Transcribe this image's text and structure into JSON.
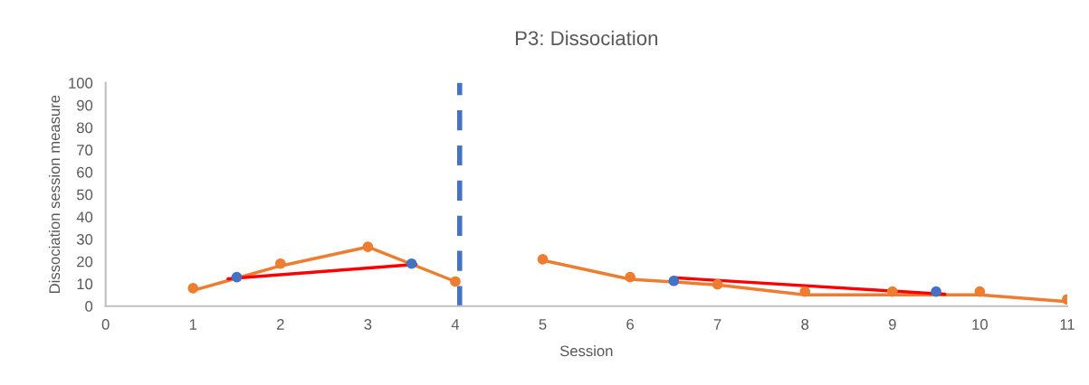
{
  "chart_data": {
    "type": "line",
    "title": "P3: Dissociation",
    "xlabel": "Session",
    "ylabel": "Dissociation session measure",
    "xlim": [
      0,
      11
    ],
    "xticks": [
      0,
      1,
      2,
      3,
      4,
      5,
      6,
      7,
      8,
      9,
      10,
      11
    ],
    "ylim": [
      0,
      100
    ],
    "yticks": [
      0,
      10,
      20,
      30,
      40,
      50,
      60,
      70,
      80,
      90,
      100
    ],
    "grid": false,
    "legend": false,
    "series": [
      {
        "color": "#ed7d31",
        "marker": "none",
        "x": [
          1,
          2,
          3,
          4,
          5,
          6,
          7,
          8,
          9,
          10,
          11
        ],
        "values": [
          7,
          18,
          26.5,
          11,
          null,
          12,
          9.5,
          5,
          5,
          5,
          2
        ]
      },
      {
        "color": "#ed7d31",
        "marker": "none",
        "x": [
          5,
          6
        ],
        "values": [
          20.5,
          12
        ]
      },
      {
        "type": "scatter",
        "color": "#ed7d31",
        "marker": "circle",
        "x": [
          1,
          2,
          3,
          4,
          5,
          6,
          7,
          8,
          9,
          10,
          11
        ],
        "values": [
          8,
          19,
          26.5,
          11,
          21,
          13,
          9.7,
          6.5,
          6.5,
          6.5,
          3
        ]
      },
      {
        "type": "scatter",
        "color": "#4472c4",
        "marker": "circle",
        "x": [
          1.5,
          3.5,
          6.5,
          9.5
        ],
        "values": [
          13,
          19,
          11.3,
          6.5
        ]
      },
      {
        "color": "#ff0000",
        "marker": "none",
        "x": [
          1.4,
          3.55
        ],
        "values": [
          12.2,
          18.7
        ]
      },
      {
        "color": "#ff0000",
        "marker": "none",
        "x": [
          6.5,
          9.6
        ],
        "values": [
          12.7,
          5.3
        ]
      }
    ],
    "ref_lines": [
      {
        "axis": "x",
        "value": 4.05,
        "color": "#4472c4",
        "line_style": "dashed"
      }
    ]
  }
}
